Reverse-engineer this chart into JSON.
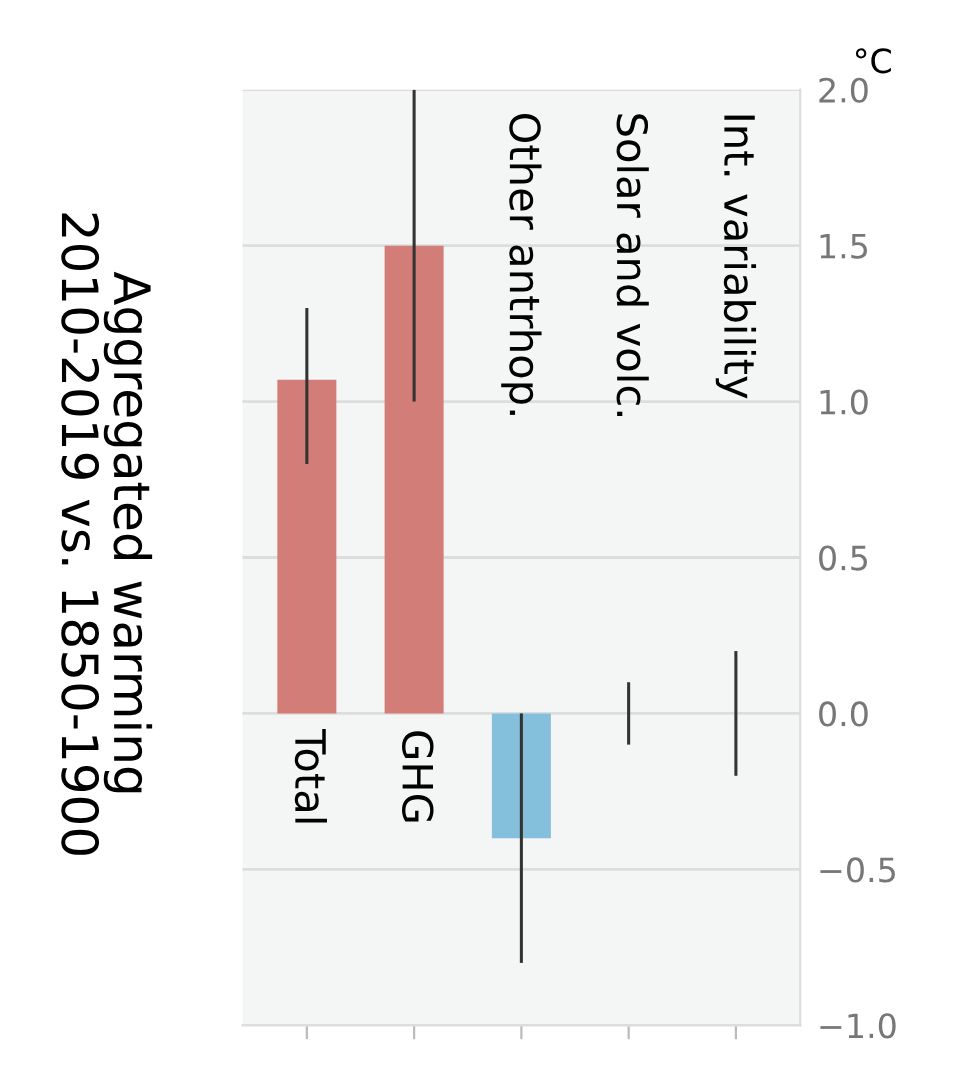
{
  "chart_data": {
    "type": "bar",
    "title": "Aggregated warming\n2010-2019 vs. 1850-1900",
    "ylabel": "°C",
    "categories": [
      "Total",
      "GHG",
      "Other antrhop.",
      "Solar and volc.",
      "Int. variability"
    ],
    "values": [
      1.07,
      1.5,
      -0.4,
      0.0,
      0.0
    ],
    "colors": [
      "#d27d77",
      "#d27d77",
      "#84bfdb",
      "#84bfdb",
      "#84bfdb"
    ],
    "errors": [
      [
        0.8,
        1.3
      ],
      [
        1.0,
        2.0
      ],
      [
        -0.8,
        0.0
      ],
      [
        -0.1,
        0.1
      ],
      [
        -0.2,
        0.2
      ]
    ],
    "ylim": [
      -1.0,
      2.0
    ],
    "yticks": [
      {
        "value": -1.0,
        "label": "−1.0"
      },
      {
        "value": -0.5,
        "label": "−0.5"
      },
      {
        "value": 0.0,
        "label": "0.0"
      },
      {
        "value": 0.5,
        "label": "0.5"
      },
      {
        "value": 1.0,
        "label": "1.0"
      },
      {
        "value": 1.5,
        "label": "1.5"
      },
      {
        "value": 2.0,
        "label": "2.0"
      }
    ],
    "grid": "y"
  }
}
